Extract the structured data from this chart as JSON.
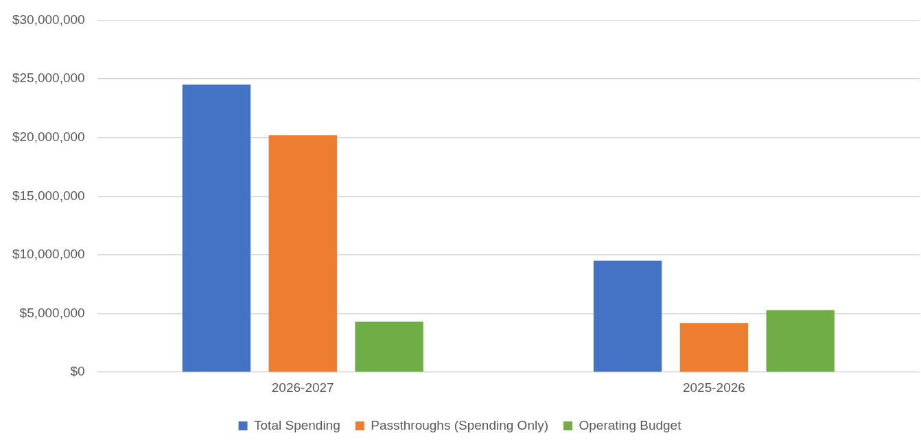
{
  "chart_data": {
    "type": "bar",
    "categories": [
      "2026-2027",
      "2025-2026"
    ],
    "series": [
      {
        "name": "Total Spending",
        "color": "#4472c4",
        "values": [
          24500000,
          9500000
        ]
      },
      {
        "name": "Passthroughs (Spending Only)",
        "color": "#ed7d31",
        "values": [
          20200000,
          4200000
        ]
      },
      {
        "name": "Operating Budget",
        "color": "#70ad47",
        "values": [
          4300000,
          5300000
        ]
      }
    ],
    "ylim": [
      0,
      30000000
    ],
    "yticks": [
      {
        "value": 0,
        "label": "$0"
      },
      {
        "value": 5000000,
        "label": "$5,000,000"
      },
      {
        "value": 10000000,
        "label": "$10,000,000"
      },
      {
        "value": 15000000,
        "label": "$15,000,000"
      },
      {
        "value": 20000000,
        "label": "$20,000,000"
      },
      {
        "value": 25000000,
        "label": "$25,000,000"
      },
      {
        "value": 30000000,
        "label": "$30,000,000"
      }
    ],
    "grid": "y",
    "legend": "bottom"
  }
}
